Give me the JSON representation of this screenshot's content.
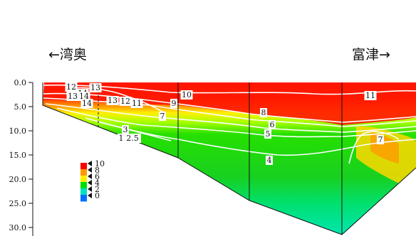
{
  "direction_labels": {
    "left": "←湾奥",
    "right": "富津→"
  },
  "chart_data": {
    "type": "heatmap",
    "title": "",
    "xlabel": "",
    "ylabel": "",
    "y_axis": {
      "ticks": [
        "0.0",
        "5.0",
        "10.0",
        "15.0",
        "20.0",
        "25.0",
        "30.0"
      ],
      "values": [
        0,
        5,
        10,
        15,
        20,
        25,
        30
      ],
      "ylim": [
        0,
        31
      ],
      "inverted": true
    },
    "color_scale": {
      "labels": [
        "10",
        "8",
        "6",
        "4",
        "2",
        "0"
      ],
      "values": [
        10,
        8,
        6,
        4,
        2,
        0
      ],
      "colors": [
        "#ff0000",
        "#ff9900",
        "#ffee00",
        "#00dd00",
        "#00e0c0",
        "#0070ff"
      ]
    },
    "contour_labels": [
      "12",
      "14",
      "13",
      "13",
      "14",
      "14",
      "13",
      "12",
      "11",
      "10",
      "9",
      "7",
      "8",
      "6",
      "5",
      "4",
      "3",
      "1",
      "2.5",
      "11",
      "7"
    ]
  }
}
